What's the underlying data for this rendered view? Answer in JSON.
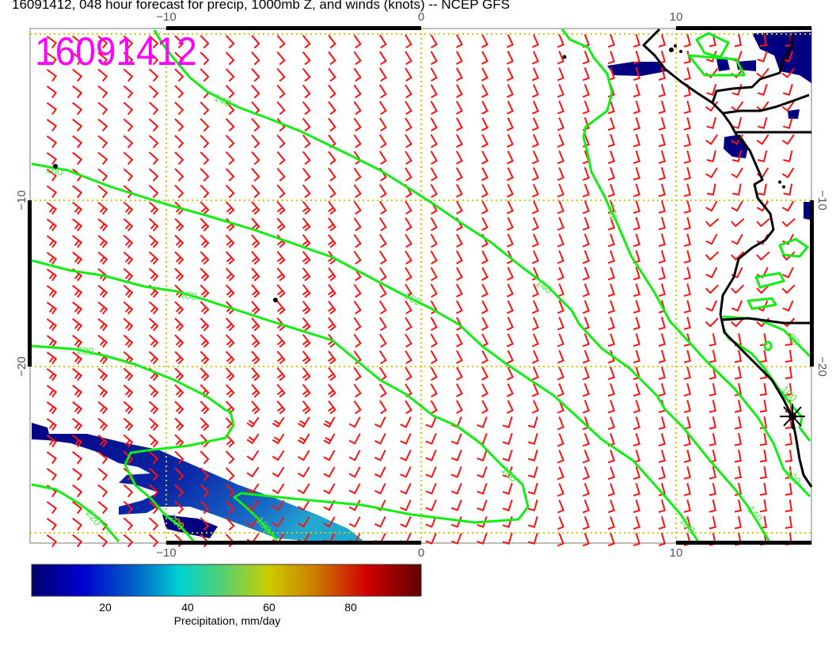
{
  "title": "16091412, 048 hour forecast for precip, 1000mb Z, and winds (knots) -- NCEP GFS",
  "stamp": "16091412",
  "axes": {
    "x_ticks": [
      "−10",
      "0",
      "10"
    ],
    "y_ticks": [
      "−10",
      "−20"
    ]
  },
  "contours": {
    "levels": [
      "80",
      "100",
      "120",
      "140",
      "160",
      "180",
      "200",
      "220"
    ],
    "color": "#11ee11"
  },
  "wind_barb_color": "#ff1010",
  "coastline_color": "#000000",
  "colorbar": {
    "ticks": [
      "20",
      "40",
      "60",
      "80"
    ],
    "label": "Precipitation, mm/day",
    "colors": [
      "#00006e",
      "#0000cc",
      "#0066c8",
      "#00d2d2",
      "#55d070",
      "#cccc00",
      "#cc7a00",
      "#d00000",
      "#600000"
    ]
  }
}
